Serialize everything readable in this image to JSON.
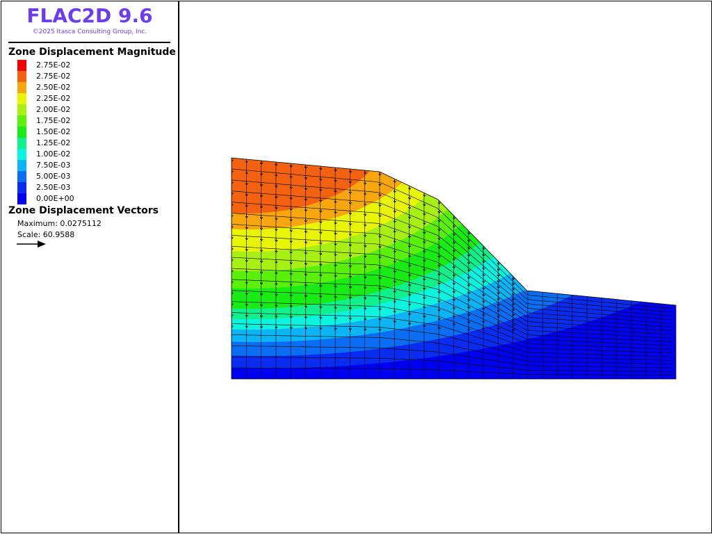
{
  "app": {
    "title": "FLAC2D 9.6",
    "copyright": "©2025 Itasca Consulting Group, Inc."
  },
  "legend": {
    "magnitude_title": "Zone Displacement Magnitude",
    "entries": [
      {
        "label": "2.75E-02",
        "color": "#f00000"
      },
      {
        "label": "2.75E-02",
        "color": "#f5620f"
      },
      {
        "label": "2.50E-02",
        "color": "#f7a60d"
      },
      {
        "label": "2.25E-02",
        "color": "#e8f505"
      },
      {
        "label": "2.00E-02",
        "color": "#a8f014"
      },
      {
        "label": "1.75E-02",
        "color": "#5bf00a"
      },
      {
        "label": "1.50E-02",
        "color": "#18ec14"
      },
      {
        "label": "1.25E-02",
        "color": "#10f08c"
      },
      {
        "label": "1.00E-02",
        "color": "#0cf4e0"
      },
      {
        "label": "7.50E-03",
        "color": "#0ab4f5"
      },
      {
        "label": "5.00E-03",
        "color": "#0a6ef5"
      },
      {
        "label": "2.50E-03",
        "color": "#0a2cf0"
      },
      {
        "label": "0.00E+00",
        "color": "#0000f0"
      }
    ],
    "vectors_title": "Zone Displacement Vectors",
    "maximum_text": "Maximum: 0.0275112",
    "scale_text": "Scale: 60.9588",
    "scale_arrow_icon": "right-arrow-icon"
  },
  "model": {
    "mesh_line_color": "#000000",
    "vector_color": "#000000"
  }
}
